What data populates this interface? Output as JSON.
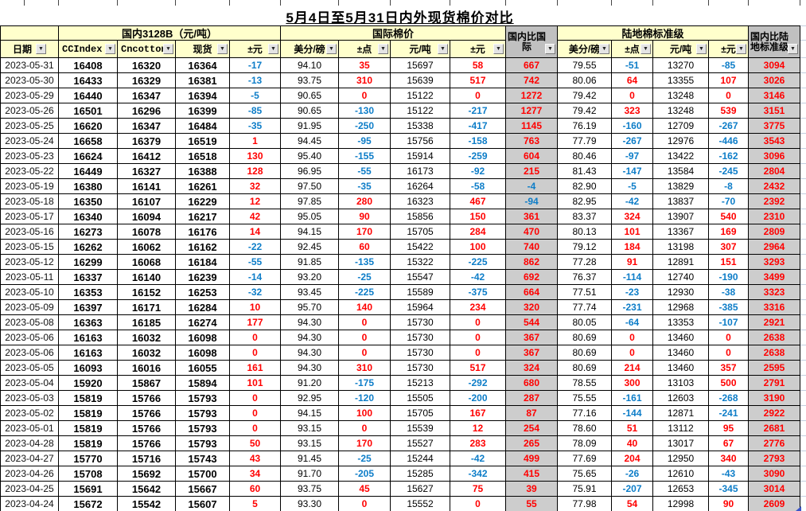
{
  "title": "5月4日至5月31日内外现货棉价对比",
  "header": {
    "groups": {
      "domestic": "国内3128B（元/吨）",
      "international": "国际棉价",
      "upland": "陆地棉标准级"
    },
    "columns": {
      "date": "日期",
      "ccindex": "CCIndex",
      "cncotton": "Cncotton",
      "spot": "现货",
      "spot_chg": "±元",
      "intl_cents": "美分/磅",
      "intl_pts": "±点",
      "intl_yuan": "元/吨",
      "intl_yuan_chg": "±元",
      "dom_vs_intl": "国内比国际",
      "up_cents": "美分/磅",
      "up_pts": "±点",
      "up_yuan": "元/吨",
      "up_yuan_chg": "±元",
      "dom_vs_upland": "国内比陆地标准级"
    }
  },
  "icons": {
    "filter_dropdown": "▼"
  },
  "colors": {
    "positive_text": "#ff0000",
    "negative_text": "#0d7dc8",
    "header_bg": "#ffffcc",
    "gray_header_bg": "#c0c0c0",
    "gray_cell_bg": "#cdcdcd",
    "border": "#000000"
  },
  "rows": [
    [
      "2023-05-31",
      "16408",
      "16320",
      "16364",
      "-17",
      "94.10",
      "35",
      "15697",
      "58",
      "667",
      "79.55",
      "-51",
      "13270",
      "-85",
      "3094"
    ],
    [
      "2023-05-30",
      "16433",
      "16329",
      "16381",
      "-13",
      "93.75",
      "310",
      "15639",
      "517",
      "742",
      "80.06",
      "64",
      "13355",
      "107",
      "3026"
    ],
    [
      "2023-05-29",
      "16440",
      "16347",
      "16394",
      "-5",
      "90.65",
      "0",
      "15122",
      "0",
      "1272",
      "79.42",
      "0",
      "13248",
      "0",
      "3146"
    ],
    [
      "2023-05-26",
      "16501",
      "16296",
      "16399",
      "-85",
      "90.65",
      "-130",
      "15122",
      "-217",
      "1277",
      "79.42",
      "323",
      "13248",
      "539",
      "3151"
    ],
    [
      "2023-05-25",
      "16620",
      "16347",
      "16484",
      "-35",
      "91.95",
      "-250",
      "15338",
      "-417",
      "1145",
      "76.19",
      "-160",
      "12709",
      "-267",
      "3775"
    ],
    [
      "2023-05-24",
      "16658",
      "16379",
      "16519",
      "1",
      "94.45",
      "-95",
      "15756",
      "-158",
      "763",
      "77.79",
      "-267",
      "12976",
      "-446",
      "3543"
    ],
    [
      "2023-05-23",
      "16624",
      "16412",
      "16518",
      "130",
      "95.40",
      "-155",
      "15914",
      "-259",
      "604",
      "80.46",
      "-97",
      "13422",
      "-162",
      "3096"
    ],
    [
      "2023-05-22",
      "16449",
      "16327",
      "16388",
      "128",
      "96.95",
      "-55",
      "16173",
      "-92",
      "215",
      "81.43",
      "-147",
      "13584",
      "-245",
      "2804"
    ],
    [
      "2023-05-19",
      "16380",
      "16141",
      "16261",
      "32",
      "97.50",
      "-35",
      "16264",
      "-58",
      "-4",
      "82.90",
      "-5",
      "13829",
      "-8",
      "2432"
    ],
    [
      "2023-05-18",
      "16350",
      "16107",
      "16229",
      "12",
      "97.85",
      "280",
      "16323",
      "467",
      "-94",
      "82.95",
      "-42",
      "13837",
      "-70",
      "2392"
    ],
    [
      "2023-05-17",
      "16340",
      "16094",
      "16217",
      "42",
      "95.05",
      "90",
      "15856",
      "150",
      "361",
      "83.37",
      "324",
      "13907",
      "540",
      "2310"
    ],
    [
      "2023-05-16",
      "16273",
      "16078",
      "16176",
      "14",
      "94.15",
      "170",
      "15705",
      "284",
      "470",
      "80.13",
      "101",
      "13367",
      "169",
      "2809"
    ],
    [
      "2023-05-15",
      "16262",
      "16062",
      "16162",
      "-22",
      "92.45",
      "60",
      "15422",
      "100",
      "740",
      "79.12",
      "184",
      "13198",
      "307",
      "2964"
    ],
    [
      "2023-05-12",
      "16299",
      "16068",
      "16184",
      "-55",
      "91.85",
      "-135",
      "15322",
      "-225",
      "862",
      "77.28",
      "91",
      "12891",
      "151",
      "3293"
    ],
    [
      "2023-05-11",
      "16337",
      "16140",
      "16239",
      "-14",
      "93.20",
      "-25",
      "15547",
      "-42",
      "692",
      "76.37",
      "-114",
      "12740",
      "-190",
      "3499"
    ],
    [
      "2023-05-10",
      "16353",
      "16152",
      "16253",
      "-32",
      "93.45",
      "-225",
      "15589",
      "-375",
      "664",
      "77.51",
      "-23",
      "12930",
      "-38",
      "3323"
    ],
    [
      "2023-05-09",
      "16397",
      "16171",
      "16284",
      "10",
      "95.70",
      "140",
      "15964",
      "234",
      "320",
      "77.74",
      "-231",
      "12968",
      "-385",
      "3316"
    ],
    [
      "2023-05-08",
      "16363",
      "16185",
      "16274",
      "177",
      "94.30",
      "0",
      "15730",
      "0",
      "544",
      "80.05",
      "-64",
      "13353",
      "-107",
      "2921"
    ],
    [
      "2023-05-06",
      "16163",
      "16032",
      "16098",
      "0",
      "94.30",
      "0",
      "15730",
      "0",
      "367",
      "80.69",
      "0",
      "13460",
      "0",
      "2638"
    ],
    [
      "2023-05-06",
      "16163",
      "16032",
      "16098",
      "0",
      "94.30",
      "0",
      "15730",
      "0",
      "367",
      "80.69",
      "0",
      "13460",
      "0",
      "2638"
    ],
    [
      "2023-05-05",
      "16093",
      "16016",
      "16055",
      "161",
      "94.30",
      "310",
      "15730",
      "517",
      "324",
      "80.69",
      "214",
      "13460",
      "357",
      "2595"
    ],
    [
      "2023-05-04",
      "15920",
      "15867",
      "15894",
      "101",
      "91.20",
      "-175",
      "15213",
      "-292",
      "680",
      "78.55",
      "300",
      "13103",
      "500",
      "2791"
    ],
    [
      "2023-05-03",
      "15819",
      "15766",
      "15793",
      "0",
      "92.95",
      "-120",
      "15505",
      "-200",
      "287",
      "75.55",
      "-161",
      "12603",
      "-268",
      "3190"
    ],
    [
      "2023-05-02",
      "15819",
      "15766",
      "15793",
      "0",
      "94.15",
      "100",
      "15705",
      "167",
      "87",
      "77.16",
      "-144",
      "12871",
      "-241",
      "2922"
    ],
    [
      "2023-05-01",
      "15819",
      "15766",
      "15793",
      "0",
      "93.15",
      "0",
      "15539",
      "12",
      "254",
      "78.60",
      "51",
      "13112",
      "95",
      "2681"
    ],
    [
      "2023-04-28",
      "15819",
      "15766",
      "15793",
      "50",
      "93.15",
      "170",
      "15527",
      "283",
      "265",
      "78.09",
      "40",
      "13017",
      "67",
      "2776"
    ],
    [
      "2023-04-27",
      "15770",
      "15716",
      "15743",
      "43",
      "91.45",
      "-25",
      "15244",
      "-42",
      "499",
      "77.69",
      "204",
      "12950",
      "340",
      "2793"
    ],
    [
      "2023-04-26",
      "15708",
      "15692",
      "15700",
      "34",
      "91.70",
      "-205",
      "15285",
      "-342",
      "415",
      "75.65",
      "-26",
      "12610",
      "-43",
      "3090"
    ],
    [
      "2023-04-25",
      "15691",
      "15642",
      "15667",
      "60",
      "93.75",
      "45",
      "15627",
      "75",
      "39",
      "75.91",
      "-207",
      "12653",
      "-345",
      "3014"
    ],
    [
      "2023-04-24",
      "15672",
      "15542",
      "15607",
      "5",
      "93.30",
      "0",
      "15552",
      "0",
      "55",
      "77.98",
      "54",
      "12998",
      "90",
      "2609"
    ]
  ]
}
